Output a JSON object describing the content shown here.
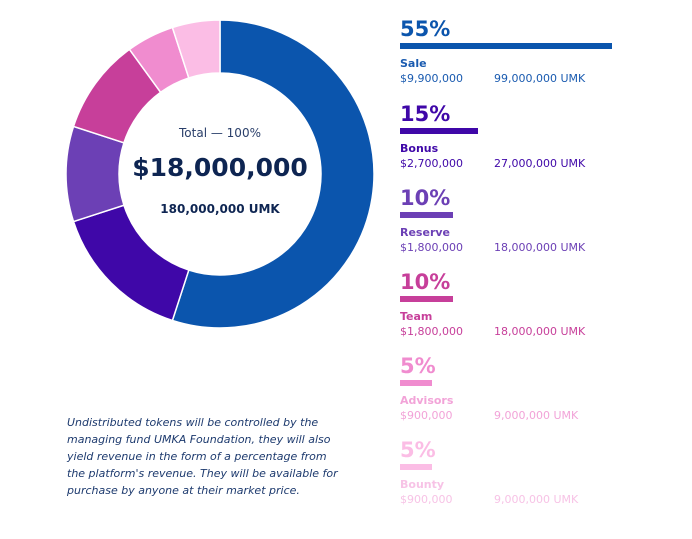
{
  "center": {
    "total_label": "Total — 100%",
    "amount": "$18,000,000",
    "tokens": "180,000,000 UMK"
  },
  "note": "Undistributed tokens will be controlled by the managing fund UMKA Foundation, they will also yield revenue in the form of a percentage from the platform's revenue. They will be available for purchase by anyone at their market price.",
  "chart_data": {
    "type": "pie",
    "title": "Total — 100%",
    "categories": [
      "Sale",
      "Bonus",
      "Reserve",
      "Team",
      "Advisors",
      "Bounty"
    ],
    "values": [
      55,
      15,
      10,
      10,
      5,
      5
    ],
    "percent_labels": [
      "55%",
      "15%",
      "10%",
      "10%",
      "5%",
      "5%"
    ],
    "usd": [
      "$9,900,000",
      "$2,700,000",
      "$1,800,000",
      "$1,800,000",
      "$900,000",
      "$900,000"
    ],
    "tokens": [
      "99,000,000 UMK",
      "27,000,000 UMK",
      "18,000,000 UMK",
      "18,000,000 UMK",
      "9,000,000 UMK",
      "9,000,000 UMK"
    ],
    "colors": [
      "#0b55ad",
      "#3f07a8",
      "#6c40b5",
      "#c73f9a",
      "#f08ccf",
      "#fbbde5"
    ],
    "text_colors": [
      "#0b55ad",
      "#3f07a8",
      "#6c40b5",
      "#c73f9a",
      "#f08ccf",
      "#fbbde5"
    ],
    "detail_colors": [
      "#1a5bb0",
      "#3f07a8",
      "#6c40b5",
      "#c73f9a",
      "#f2a3d8",
      "#f7c3e6"
    ]
  }
}
